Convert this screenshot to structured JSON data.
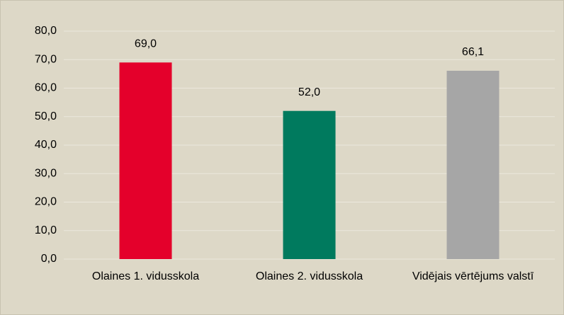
{
  "chart_data": {
    "type": "bar",
    "categories": [
      "Olaines 1. vidusskola",
      "Olaines 2. vidusskola",
      "Vidējais vērtējums valstī"
    ],
    "values": [
      69.0,
      52.0,
      66.1
    ],
    "value_labels": [
      "69,0",
      "52,0",
      "66,1"
    ],
    "colors": [
      "#e4002b",
      "#007a5e",
      "#a6a6a6"
    ],
    "ylim": [
      0,
      80
    ],
    "yticks": [
      {
        "value": 0,
        "label": "0,0"
      },
      {
        "value": 10,
        "label": "10,0"
      },
      {
        "value": 20,
        "label": "20,0"
      },
      {
        "value": 30,
        "label": "30,0"
      },
      {
        "value": 40,
        "label": "40,0"
      },
      {
        "value": 50,
        "label": "50,0"
      },
      {
        "value": 60,
        "label": "60,0"
      },
      {
        "value": 70,
        "label": "70,0"
      },
      {
        "value": 80,
        "label": "80,0"
      }
    ],
    "grid": true
  }
}
